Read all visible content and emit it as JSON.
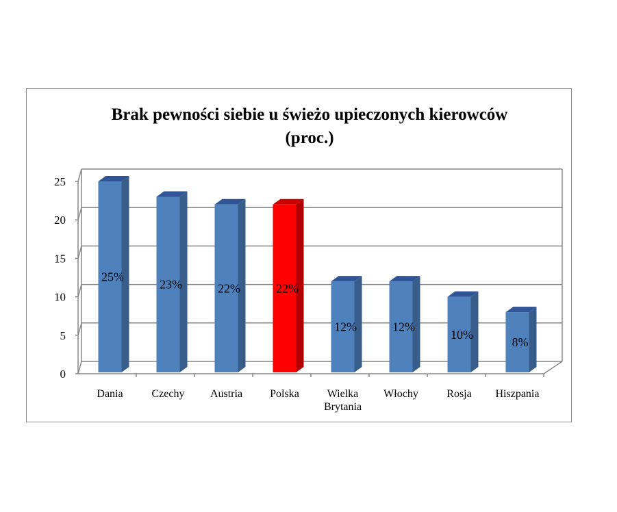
{
  "chart_data": {
    "type": "bar",
    "title": "Brak pewności siebie u świeżo upieczonych kierowców",
    "subtitle": "(proc.)",
    "categories": [
      [
        "Dania"
      ],
      [
        "Czechy"
      ],
      [
        "Austria"
      ],
      [
        "Polska"
      ],
      [
        "Wielka",
        "Brytania"
      ],
      [
        "Włochy"
      ],
      [
        "Rosja"
      ],
      [
        "Hiszpania"
      ]
    ],
    "values": [
      25,
      23,
      22,
      22,
      12,
      12,
      10,
      8
    ],
    "data_labels": [
      "25%",
      "23%",
      "22%",
      "22%",
      "12%",
      "12%",
      "10%",
      "8%"
    ],
    "yticks": [
      "0",
      "5",
      "10",
      "15",
      "20",
      "25"
    ],
    "ylim": [
      0,
      25
    ],
    "grid": true,
    "legend": "none",
    "colors": {
      "bar": "#4f81bd",
      "bar_side": "#385d8a",
      "bar_top": "#2f5597",
      "highlight": "#ff0000",
      "highlight_side": "#b00000",
      "highlight_top": "#cc0000",
      "grid": "#868686"
    },
    "highlight_index": 3
  }
}
